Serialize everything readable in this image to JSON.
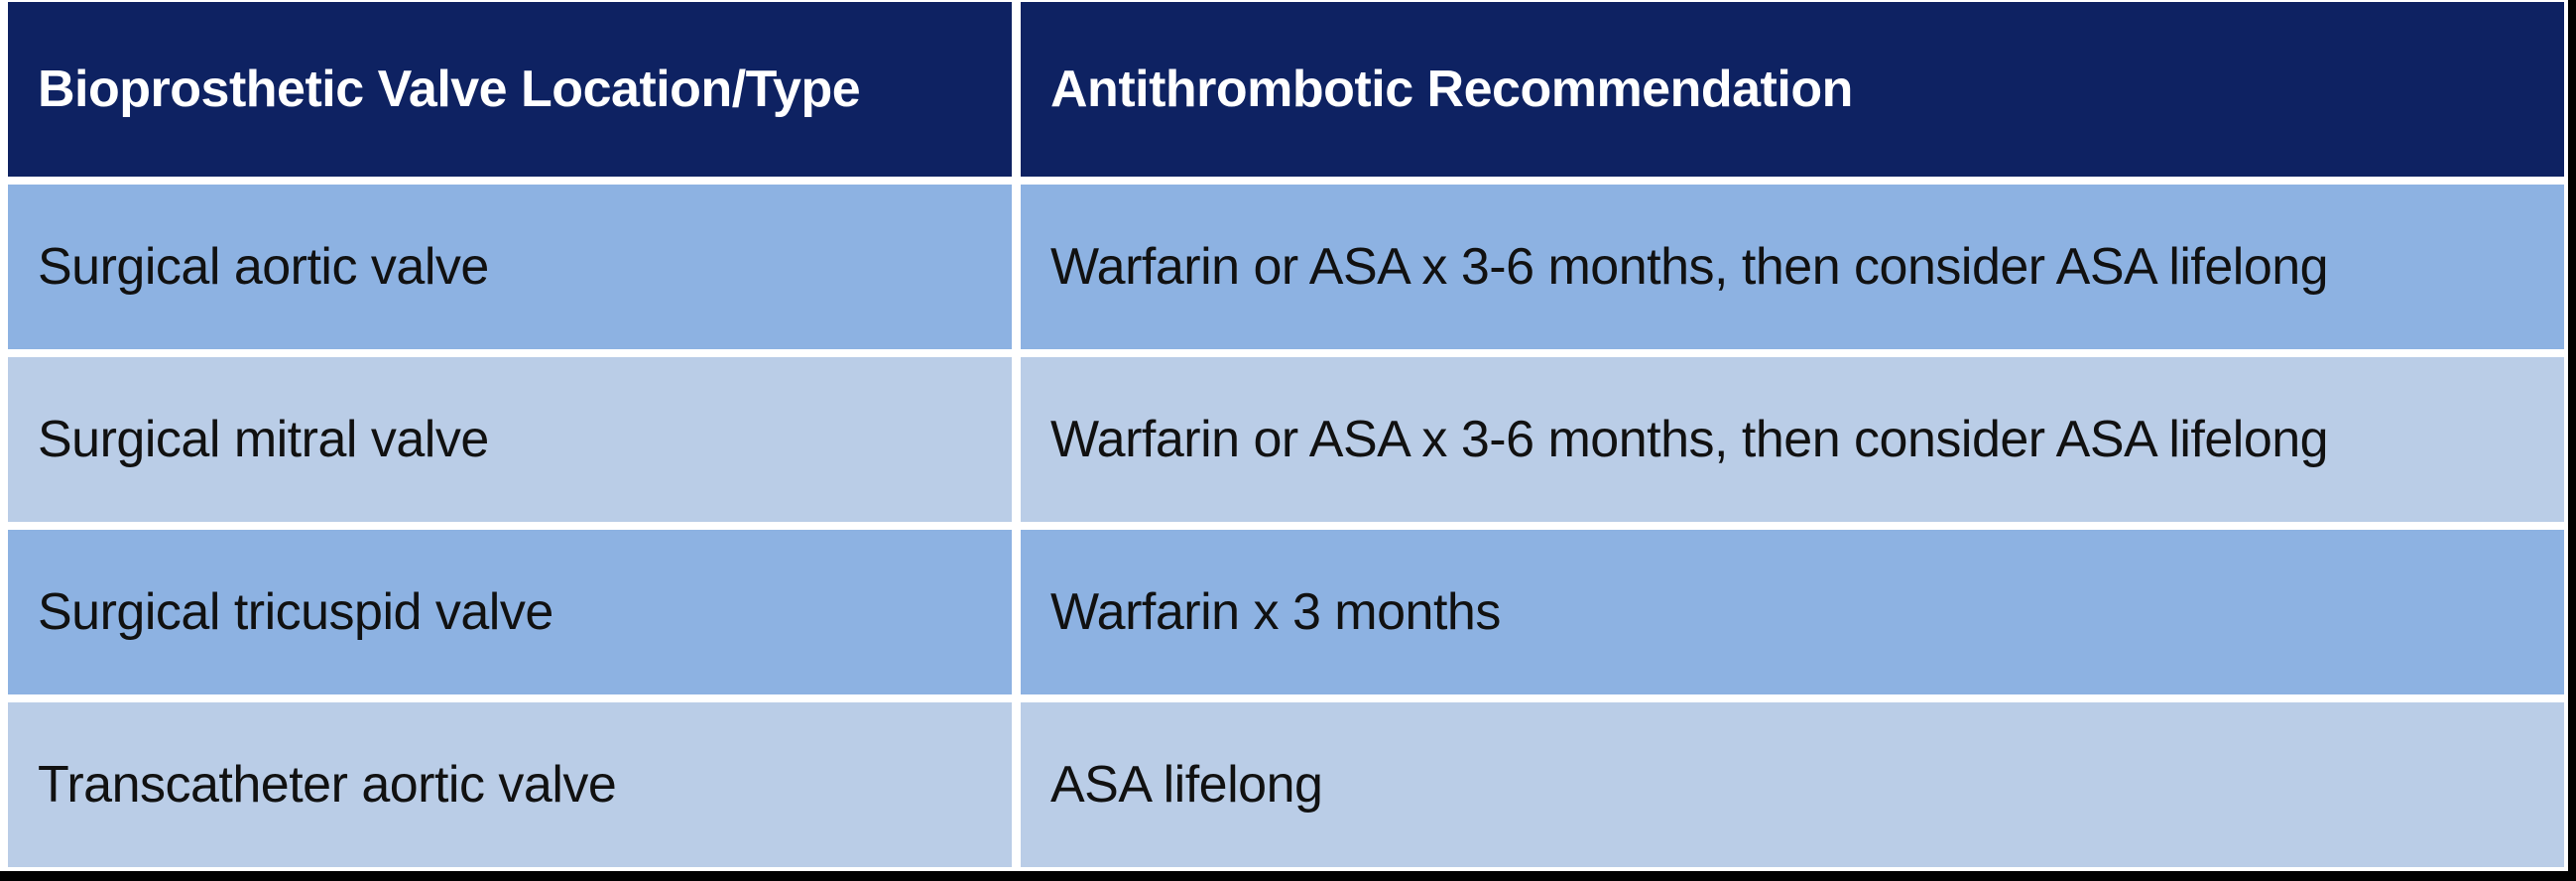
{
  "page": {
    "background_color": "#FFFFFF",
    "edge_bar_color": "#000000"
  },
  "table": {
    "header": {
      "background_color": "#0E2262",
      "text_color": "#FFFFFF",
      "columns": [
        "Bioprosthetic Valve Location/Type",
        "Antithrombotic Recommendation"
      ]
    },
    "row_colors": {
      "odd": "#8DB2E2",
      "even": "#BACDE7"
    },
    "body_text_color": "#111111",
    "rows": [
      {
        "location": "Surgical aortic valve",
        "recommendation": "Warfarin or ASA x 3-6 months, then consider ASA lifelong"
      },
      {
        "location": "Surgical mitral valve",
        "recommendation": "Warfarin or ASA x 3-6 months, then consider ASA lifelong"
      },
      {
        "location": "Surgical tricuspid valve",
        "recommendation": "Warfarin x 3 months"
      },
      {
        "location": "Transcatheter aortic valve",
        "recommendation": "ASA lifelong"
      }
    ]
  }
}
